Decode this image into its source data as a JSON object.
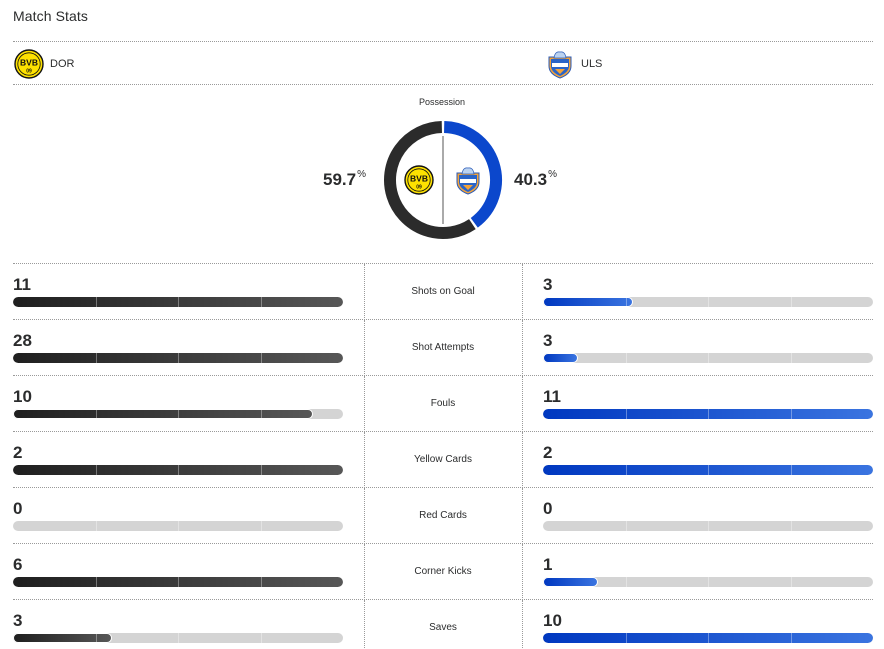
{
  "header": {
    "title": "Match Stats"
  },
  "teams": {
    "home": {
      "abbr": "DOR",
      "logo_icon": "bvb-crest-icon",
      "color": "#2b2b2b"
    },
    "away": {
      "abbr": "ULS",
      "logo_icon": "ulsan-crest-icon",
      "color": "#0b47cc"
    }
  },
  "possession": {
    "label": "Possession",
    "home_value": "59.7",
    "away_value": "40.3",
    "unit": "%"
  },
  "stats": [
    {
      "label": "Shots on Goal",
      "home": "11",
      "away": "3",
      "home_fraction": 1.0,
      "away_fraction": 0.273
    },
    {
      "label": "Shot Attempts",
      "home": "28",
      "away": "3",
      "home_fraction": 1.0,
      "away_fraction": 0.107
    },
    {
      "label": "Fouls",
      "home": "10",
      "away": "11",
      "home_fraction": 0.909,
      "away_fraction": 1.0
    },
    {
      "label": "Yellow Cards",
      "home": "2",
      "away": "2",
      "home_fraction": 1.0,
      "away_fraction": 1.0
    },
    {
      "label": "Red Cards",
      "home": "0",
      "away": "0",
      "home_fraction": 0,
      "away_fraction": 0
    },
    {
      "label": "Corner Kicks",
      "home": "6",
      "away": "1",
      "home_fraction": 1.0,
      "away_fraction": 0.167
    },
    {
      "label": "Saves",
      "home": "3",
      "away": "10",
      "home_fraction": 0.3,
      "away_fraction": 1.0
    }
  ]
}
